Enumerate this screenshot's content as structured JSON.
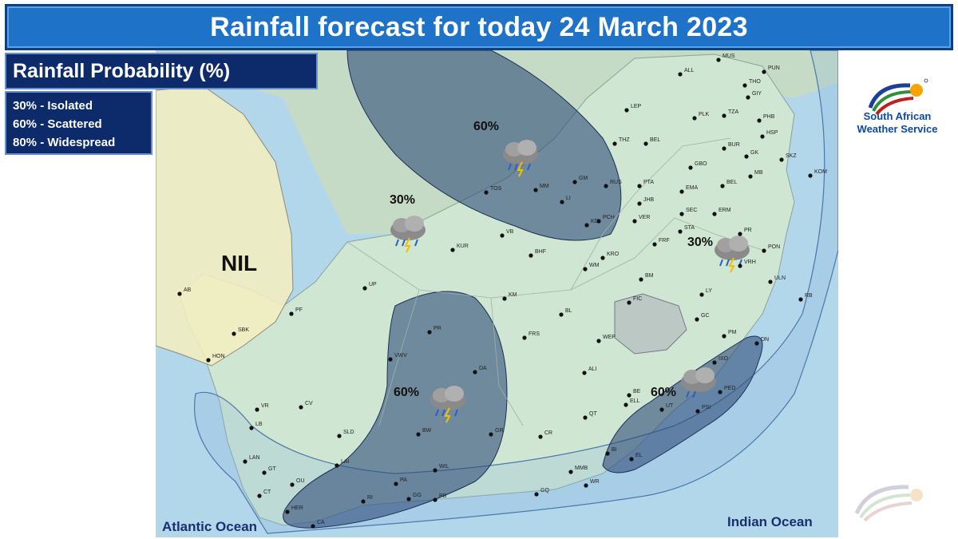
{
  "title": "Rainfall forecast for today 24 March 2023",
  "legend": {
    "heading": "Rainfall Probability (%)",
    "items": [
      "30% - Isolated",
      "60% - Scattered",
      "80% - Widespread"
    ]
  },
  "logo": {
    "line1": "South African",
    "line2": "Weather Service"
  },
  "map": {
    "nil_label": "NIL",
    "oceans": [
      "Atlantic Ocean",
      "Indian Ocean"
    ],
    "areas": [
      {
        "label": "60%",
        "icon": "thunderstorm-cloud-icon"
      },
      {
        "label": "30%",
        "icon": "thunderstorm-cloud-icon"
      },
      {
        "label": "60%",
        "icon": "thunderstorm-cloud-icon"
      },
      {
        "label": "30%",
        "icon": "thunderstorm-cloud-icon"
      },
      {
        "label": "60%",
        "icon": "thunderstorm-cloud-icon"
      }
    ],
    "stations": [
      "MUS",
      "PUN",
      "ALL",
      "THO",
      "GIY",
      "LEP",
      "PLK",
      "TZA",
      "PHB",
      "HSP",
      "THZ",
      "BEL",
      "BUR",
      "SKZ",
      "GK",
      "GBO",
      "MB",
      "KOM",
      "BEL",
      "GM",
      "RUS",
      "PTA",
      "TOS",
      "MM",
      "LI",
      "JHB",
      "EMA",
      "VER",
      "SEC",
      "ERM",
      "KD",
      "PCH",
      "STA",
      "PR",
      "VB",
      "FRF",
      "KUR",
      "BHF",
      "KRO",
      "PON",
      "WM",
      "VRH",
      "BM",
      "UP",
      "ULN",
      "KM",
      "LY",
      "FIC",
      "RB",
      "AB",
      "PF",
      "BL",
      "GC",
      "PR",
      "SBK",
      "FRS",
      "WEP",
      "PM",
      "HON",
      "DN",
      "VWV",
      "IXO",
      "ALI",
      "DA",
      "BE",
      "PED",
      "ELL",
      "UT",
      "PSI",
      "CV",
      "VR",
      "QT",
      "LB",
      "SLD",
      "GR",
      "BW",
      "CR",
      "BI",
      "EL",
      "LAN",
      "LAI",
      "WIL",
      "MMB",
      "GT",
      "WR",
      "OU",
      "PA",
      "CT",
      "RI",
      "GG",
      "PB",
      "GQ",
      "HER",
      "CA"
    ],
    "colors": {
      "ocean": "#a6cfe8",
      "land": "#cfe3cf",
      "nil_area": "#f2eebf",
      "rain_area": "#3a5a8a",
      "title_bg": "#1e73c8",
      "legend_bg": "#0d2a6a"
    }
  }
}
